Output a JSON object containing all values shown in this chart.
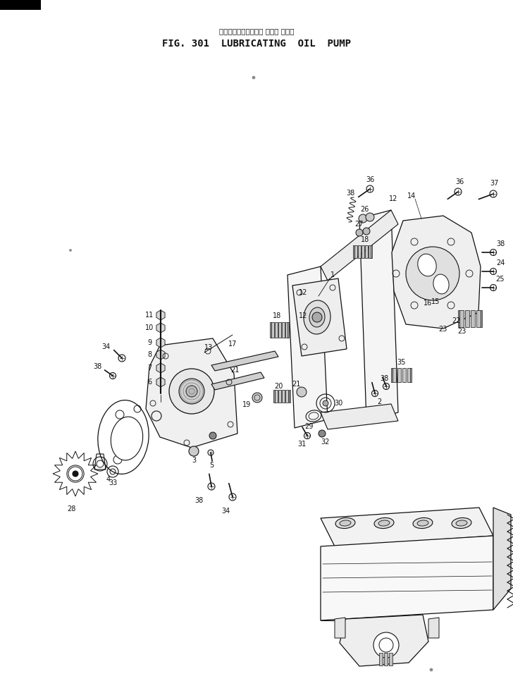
{
  "title_jp": "ルーブリケーティング オイル ポンプ",
  "title_en": "FIG. 301  LUBRICATING  OIL  PUMP",
  "bg_color": "#ffffff",
  "fig_width": 7.28,
  "fig_height": 9.83,
  "dpi": 100,
  "lc": "#111111"
}
